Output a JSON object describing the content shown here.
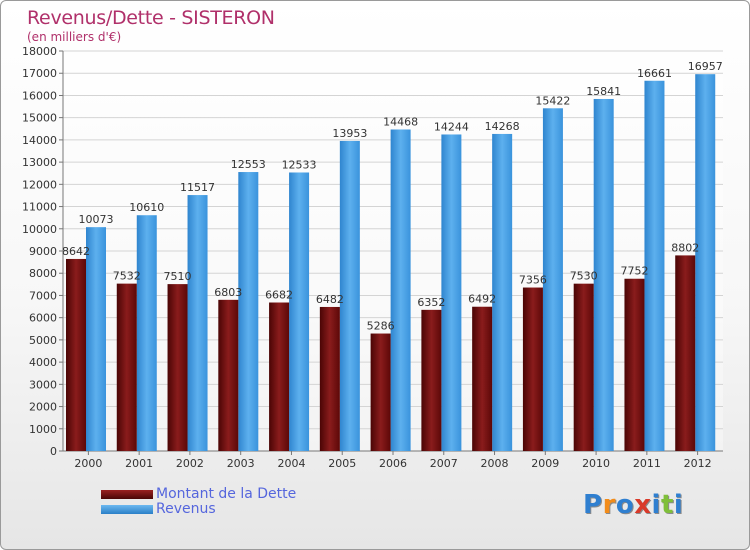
{
  "chart_data": {
    "type": "bar",
    "title": "Revenus/Dette - SISTERON",
    "subtitle": "(en milliers d'€)",
    "categories": [
      "2000",
      "2001",
      "2002",
      "2003",
      "2004",
      "2005",
      "2006",
      "2007",
      "2008",
      "2009",
      "2010",
      "2011",
      "2012"
    ],
    "series": [
      {
        "name": "Montant de la Dette",
        "color": "#6b0a0a",
        "values": [
          8642,
          7532,
          7510,
          6803,
          6682,
          6482,
          5286,
          6352,
          6492,
          7356,
          7530,
          7752,
          8802
        ]
      },
      {
        "name": "Revenus",
        "color": "#3d9be0",
        "values": [
          10073,
          10610,
          11517,
          12553,
          12533,
          13953,
          14468,
          14244,
          14268,
          15422,
          15841,
          16661,
          16957
        ]
      }
    ],
    "ylim": [
      0,
      18000
    ],
    "yticks": [
      0,
      1000,
      2000,
      3000,
      4000,
      5000,
      6000,
      7000,
      8000,
      9000,
      10000,
      11000,
      12000,
      13000,
      14000,
      15000,
      16000,
      17000,
      18000
    ],
    "grid": true,
    "legend_position": "bottom-left"
  },
  "logo": {
    "letters": [
      "P",
      "r",
      "o",
      "x",
      "i",
      "t",
      "i"
    ],
    "colors": [
      "#2f7fd0",
      "#f28c1a",
      "#2f7fd0",
      "#d93a2a",
      "#2f7fd0",
      "#7fbf3a",
      "#2f7fd0"
    ]
  }
}
